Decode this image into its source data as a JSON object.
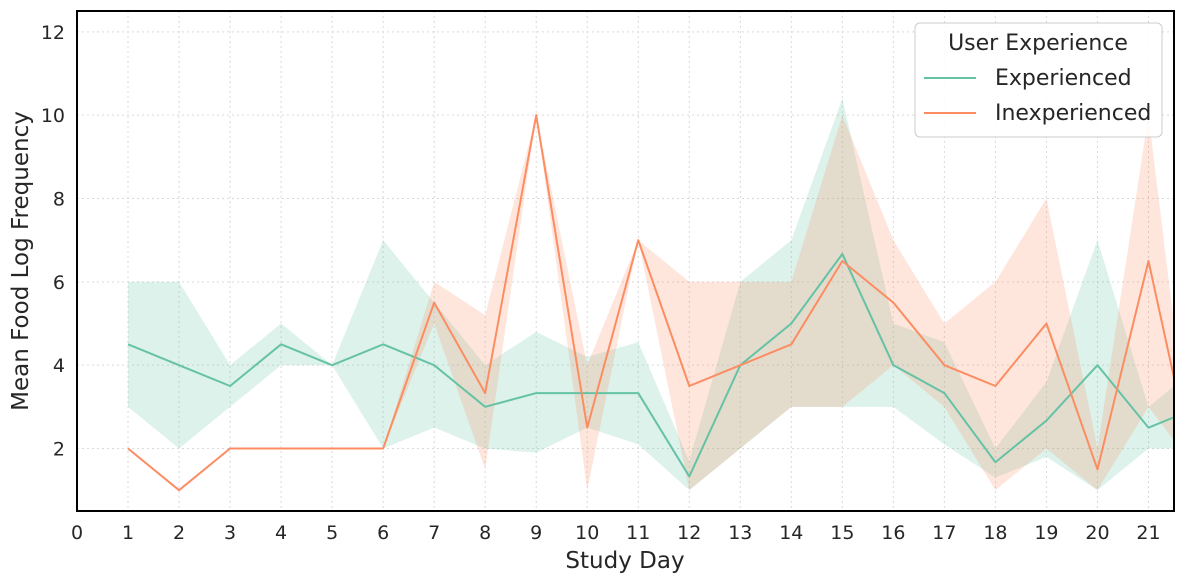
{
  "chart_data": {
    "type": "line",
    "title": "",
    "xlabel": "Study Day",
    "ylabel": "Mean Food Log Frequency",
    "xlim": [
      0,
      21.5
    ],
    "ylim": [
      0.5,
      12.5
    ],
    "xticks": [
      0,
      1,
      2,
      3,
      4,
      5,
      6,
      7,
      8,
      9,
      10,
      11,
      12,
      13,
      14,
      15,
      16,
      17,
      18,
      19,
      20,
      21
    ],
    "yticks": [
      2,
      4,
      6,
      8,
      10,
      12
    ],
    "grid": true,
    "legend": {
      "title": "User Experience",
      "position": "top-right"
    },
    "series": [
      {
        "name": "Experienced",
        "color": "#66c2a5",
        "x": [
          1,
          2,
          3,
          4,
          5,
          6,
          7,
          8,
          9,
          10,
          11,
          12,
          13,
          14,
          15,
          16,
          17,
          18,
          19,
          20,
          21,
          21.5
        ],
        "y": [
          4.5,
          4.0,
          3.5,
          4.5,
          4.0,
          4.5,
          4.0,
          3.0,
          3.33,
          3.33,
          3.33,
          1.33,
          4.0,
          5.0,
          6.67,
          4.0,
          3.33,
          1.67,
          2.67,
          4.0,
          2.5,
          2.75
        ],
        "ci_low": [
          3.0,
          2.0,
          3.0,
          4.0,
          4.0,
          2.0,
          2.5,
          2.0,
          1.9,
          2.5,
          2.1,
          1.0,
          2.0,
          3.0,
          3.0,
          3.0,
          2.1,
          1.3,
          1.8,
          1.0,
          2.0,
          2.0
        ],
        "ci_high": [
          6.0,
          6.0,
          4.0,
          5.0,
          4.0,
          7.0,
          5.5,
          4.0,
          4.8,
          4.2,
          4.55,
          1.7,
          6.0,
          7.0,
          10.4,
          5.0,
          4.55,
          2.0,
          3.6,
          7.0,
          3.0,
          3.5
        ]
      },
      {
        "name": "Inexperienced",
        "color": "#fc8d62",
        "x": [
          1,
          2,
          3,
          4,
          5,
          6,
          7,
          8,
          9,
          10,
          11,
          12,
          13,
          14,
          15,
          16,
          17,
          18,
          19,
          20,
          21,
          21.5
        ],
        "y": [
          2.0,
          1.0,
          2.0,
          2.0,
          2.0,
          2.0,
          5.5,
          3.33,
          10.0,
          2.5,
          7.0,
          3.5,
          4.0,
          4.5,
          6.5,
          5.5,
          4.0,
          3.5,
          5.0,
          1.5,
          6.5,
          3.7
        ],
        "ci_low": [
          2.0,
          1.0,
          2.0,
          2.0,
          2.0,
          2.0,
          5.0,
          1.5,
          10.0,
          1.0,
          7.0,
          1.0,
          2.0,
          3.0,
          3.0,
          4.0,
          3.0,
          1.0,
          2.0,
          1.0,
          3.0,
          2.2
        ],
        "ci_high": [
          2.0,
          1.0,
          2.0,
          2.0,
          2.0,
          2.0,
          6.0,
          5.2,
          10.0,
          4.0,
          7.0,
          6.0,
          6.0,
          6.0,
          10.0,
          7.0,
          5.0,
          6.0,
          8.0,
          2.0,
          10.0,
          5.0
        ]
      }
    ]
  }
}
